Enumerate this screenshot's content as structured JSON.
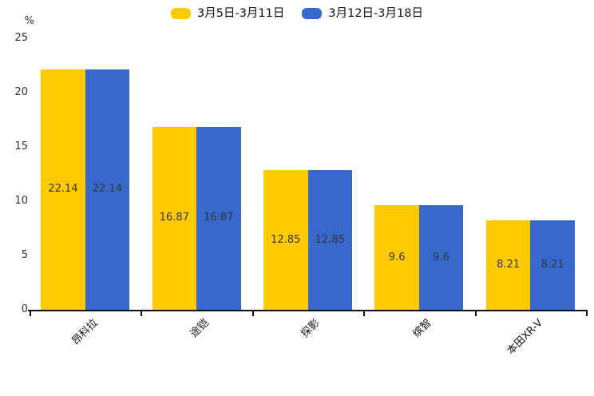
{
  "chart_data": {
    "type": "bar",
    "title": "",
    "xlabel": "",
    "ylabel": "%",
    "categories": [
      "昂科拉",
      "途铠",
      "探影",
      "缤智",
      "本田XR-V"
    ],
    "series": [
      {
        "name": "3月5日-3月11日",
        "color": "#FFCB00",
        "values": [
          22.14,
          16.87,
          12.85,
          9.6,
          8.21
        ]
      },
      {
        "name": "3月12日-3月18日",
        "color": "#3769CD",
        "values": [
          22.14,
          16.87,
          12.85,
          9.6,
          8.21
        ]
      }
    ],
    "ylim": [
      0,
      25
    ],
    "yticks": [
      0,
      5,
      10,
      15,
      20,
      25
    ],
    "grid": false,
    "legend_position": "top",
    "value_label_position": "inside-center",
    "category_label_rotation_deg": 45
  },
  "colors": {
    "background": "#ffffff",
    "axis": "#111111",
    "tick_label": "#333333",
    "value_label": "#333333"
  }
}
